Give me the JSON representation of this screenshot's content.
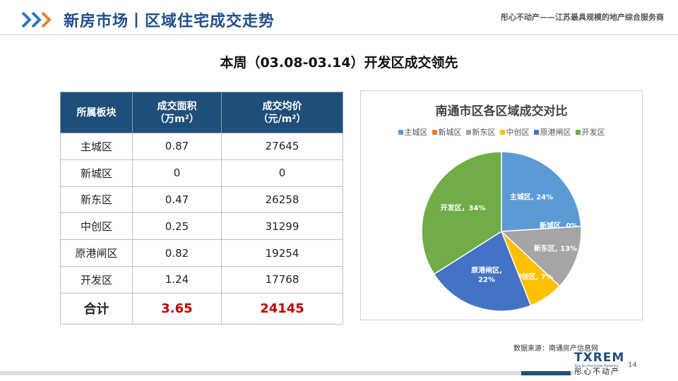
{
  "header": {
    "title": "新房市场丨区域住宅成交走势",
    "slogan": "彤心不动产——江苏最具规模的地产综合服务商"
  },
  "subtitle": "本周（03.08-03.14）开发区成交领先",
  "table": {
    "headers": [
      {
        "line1": "所属板块",
        "line2": ""
      },
      {
        "line1": "成交面积",
        "line2": "（万m²）"
      },
      {
        "line1": "成交均价",
        "line2": "（元/m²）"
      }
    ],
    "rows": [
      {
        "region": "主城区",
        "area": "0.87",
        "price": "27645"
      },
      {
        "region": "新城区",
        "area": "0",
        "price": "0"
      },
      {
        "region": "新东区",
        "area": "0.47",
        "price": "26258"
      },
      {
        "region": "中创区",
        "area": "0.25",
        "price": "31299"
      },
      {
        "region": "原港闸区",
        "area": "0.82",
        "price": "19254"
      },
      {
        "region": "开发区",
        "area": "1.24",
        "price": "17768"
      }
    ],
    "total": {
      "label": "合计",
      "area": "3.65",
      "price": "24145"
    }
  },
  "chart_data": {
    "type": "pie",
    "title": "南通市区各区域成交对比",
    "legend_position": "top",
    "slices": [
      {
        "name": "主城区",
        "label": "主城区, 24%",
        "value": 24,
        "color": "#5b9bd5"
      },
      {
        "name": "新城区",
        "label": "新城区, 0%",
        "value": 0,
        "color": "#ed7d31"
      },
      {
        "name": "新东区",
        "label": "新东区, 13%",
        "value": 13,
        "color": "#a5a5a5"
      },
      {
        "name": "中创区",
        "label": "中创区, 7%",
        "value": 7,
        "color": "#ffc000"
      },
      {
        "name": "原港闸区",
        "label": "原港闸区,\n22%",
        "value": 22,
        "color": "#4472c4"
      },
      {
        "name": "开发区",
        "label": "开发区，34%",
        "value": 34,
        "color": "#70ad47"
      }
    ]
  },
  "footer": {
    "source": "数据来源：南通房产信息网",
    "page": "14",
    "logo_main": "TXREM",
    "logo_en": "Tong Xin Real Estate Marketing",
    "logo_cn": "彤心不动产"
  },
  "colors": {
    "brand": "#1f4e79",
    "title": "#1f4e8c",
    "total_red": "#c00000",
    "chevron_blue": "#2e75b6",
    "chevron_orange": "#ed7d31"
  }
}
